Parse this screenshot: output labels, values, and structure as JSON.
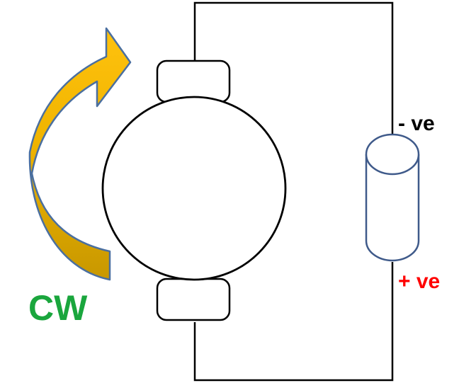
{
  "labels": {
    "negative_terminal": "- ve",
    "positive_terminal": "+ ve",
    "rotation": "CW"
  },
  "colors": {
    "wire": "#000000",
    "battery_outline": "#3f5a8a",
    "arrow_fill_top": "#ffc20e",
    "arrow_fill_bottom": "#c89800",
    "arrow_outline": "#4a6fa0",
    "negative_text": "#000000",
    "positive_text": "#ff0000",
    "rotation_text": "#1aa63d"
  },
  "icons": {
    "rotation_arrow": "clockwise-curved-arrow-icon",
    "motor": "dc-motor-icon",
    "battery": "battery-cell-icon"
  }
}
